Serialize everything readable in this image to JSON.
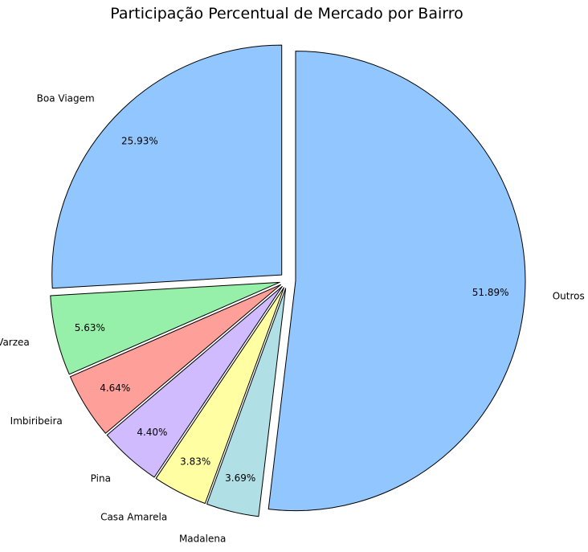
{
  "chart_data": {
    "type": "pie",
    "title": "Participação Percentual de Mercado por Bairro",
    "start": "top, counter-clockwise",
    "exploded": true,
    "slices": [
      {
        "label": "Boa Viagem",
        "value": 25.93,
        "pct_label": "25.93%",
        "color": "#92c6ff"
      },
      {
        "label": "Varzea",
        "value": 5.63,
        "pct_label": "5.63%",
        "color": "#97f0aa"
      },
      {
        "label": "Imbiribeira",
        "value": 4.64,
        "pct_label": "4.64%",
        "color": "#ff9f9a"
      },
      {
        "label": "Pina",
        "value": 4.4,
        "pct_label": "4.40%",
        "color": "#d0bbff"
      },
      {
        "label": "Casa Amarela",
        "value": 3.83,
        "pct_label": "3.83%",
        "color": "#fffea3"
      },
      {
        "label": "Madalena",
        "value": 3.69,
        "pct_label": "3.69%",
        "color": "#b0e0e6"
      },
      {
        "label": "Outros",
        "value": 51.89,
        "pct_label": "51.89%",
        "color": "#92c6ff"
      }
    ]
  }
}
